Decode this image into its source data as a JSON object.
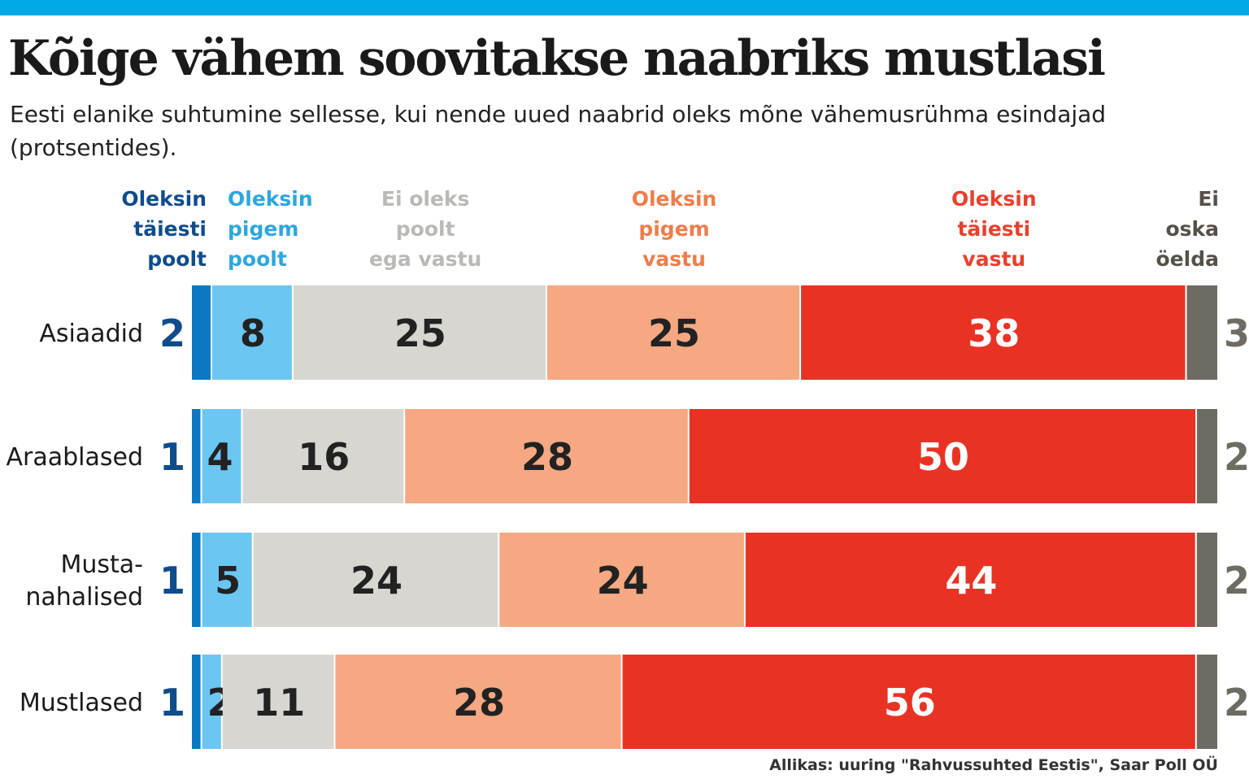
{
  "title": "Kõige vähem soovitakse naabriks mustlasi",
  "subtitle": "Eesti elanike suhtumine sellesse, kui nende uued naabrid oleks mõne vähemusrühma esindajad (protsentides).",
  "source": "Allikas: uuring \"Rahvussuhted Eestis\", Saar Poll OÜ",
  "chart_data": {
    "type": "bar",
    "orientation": "horizontal",
    "stacked": true,
    "xlim": [
      0,
      100
    ],
    "categories": [
      "Asiaadid",
      "Araablased",
      "Musta-nahalised",
      "Mustlased"
    ],
    "category_lines": [
      [
        "Asiaadid"
      ],
      [
        "Araablased"
      ],
      [
        "Musta-",
        "nahalised"
      ],
      [
        "Mustlased"
      ]
    ],
    "series": [
      {
        "name": "Oleksin täiesti poolt",
        "lines": [
          "Oleksin",
          "täiesti",
          "poolt"
        ],
        "color": "#0a78c2",
        "label_color": "#0f4c8c",
        "label_align": "right",
        "values": [
          2,
          1,
          1,
          1
        ]
      },
      {
        "name": "Oleksin pigem poolt",
        "lines": [
          "Oleksin",
          "pigem",
          "poolt"
        ],
        "color": "#6cc6f2",
        "label_color": "#2ea6de",
        "label_align": "left",
        "values": [
          8,
          4,
          5,
          2
        ]
      },
      {
        "name": "Ei oleks poolt ega vastu",
        "lines": [
          "Ei oleks",
          "poolt",
          "ega vastu"
        ],
        "color": "#d7d6d1",
        "label_color": "#b9b9b6",
        "label_align": "center",
        "values": [
          25,
          16,
          24,
          11
        ]
      },
      {
        "name": "Oleksin pigem vastu",
        "lines": [
          "Oleksin",
          "pigem",
          "vastu"
        ],
        "color": "#f5a882",
        "label_color": "#ee7d4a",
        "label_align": "center",
        "values": [
          25,
          28,
          24,
          28
        ]
      },
      {
        "name": "Oleksin täiesti vastu",
        "lines": [
          "Oleksin",
          "täiesti",
          "vastu"
        ],
        "color": "#e83324",
        "label_color": "#e8402e",
        "label_align": "center",
        "values": [
          38,
          50,
          44,
          56
        ]
      },
      {
        "name": "Ei oska öelda",
        "lines": [
          "Ei",
          "oska",
          "öelda"
        ],
        "color": "#6e6b62",
        "label_color": "#555048",
        "label_align": "right",
        "values": [
          3,
          2,
          2,
          2
        ]
      }
    ],
    "value_label_colors": {
      "outside_first": "#0f4c8c",
      "outside_last": "#6e6b62",
      "inside_dark": "#222222",
      "inside_light": "#ffffff"
    }
  }
}
